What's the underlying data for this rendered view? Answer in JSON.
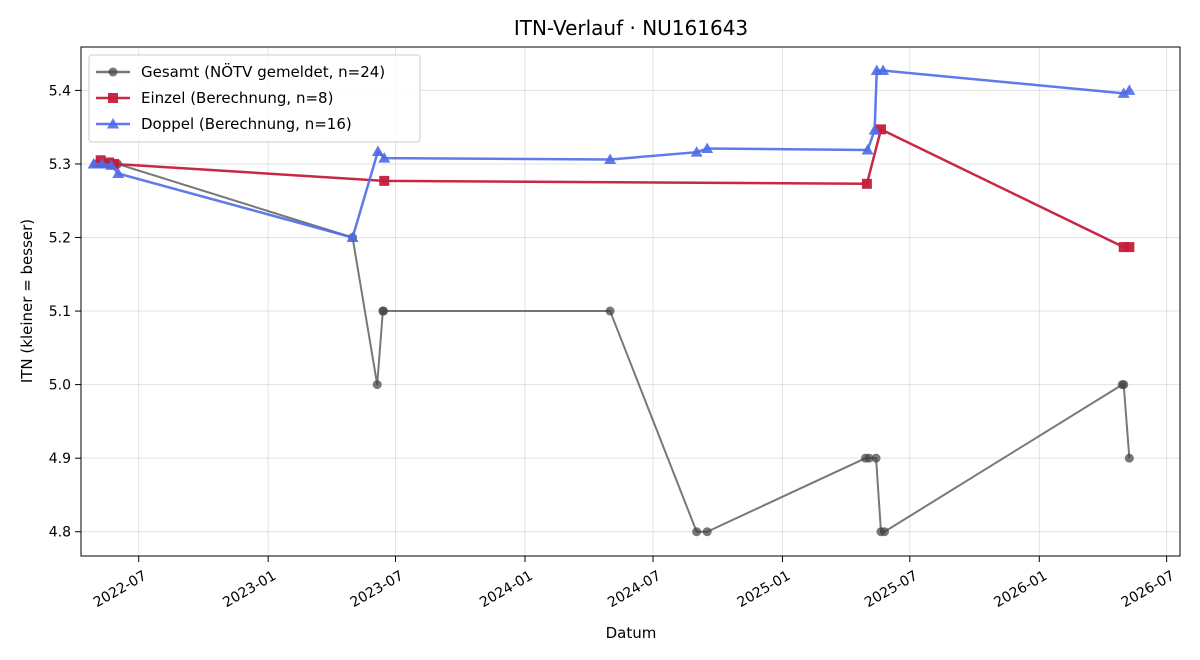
{
  "chart_data": {
    "type": "line",
    "title": "ITN-Verlauf · NU161643",
    "xlabel": "Datum",
    "ylabel": "ITN  (kleiner = besser)",
    "xlim": [
      "2022-04-10",
      "2026-07-20"
    ],
    "ylim": [
      4.767,
      5.459
    ],
    "x_ticks": [
      "2022-07-01",
      "2023-01-01",
      "2023-07-01",
      "2024-01-01",
      "2024-07-01",
      "2025-01-01",
      "2025-07-01",
      "2026-01-01",
      "2026-07-01"
    ],
    "x_tick_labels": [
      "2022-07",
      "2023-01",
      "2023-07",
      "2024-01",
      "2024-07",
      "2025-01",
      "2025-07",
      "2026-01",
      "2026-07"
    ],
    "y_ticks": [
      4.8,
      4.9,
      5.0,
      5.1,
      5.2,
      5.3,
      5.4
    ],
    "y_tick_labels": [
      "4.8",
      "4.9",
      "5.0",
      "5.1",
      "5.2",
      "5.3",
      "5.4"
    ],
    "grid": true,
    "legend_position": "top-left",
    "series": [
      {
        "name": "Gesamt (NÖTV gemeldet, n=24)",
        "color": "#444444",
        "marker": "circle",
        "points": [
          [
            "2022-05-01",
            5.3
          ],
          [
            "2022-05-07",
            5.3
          ],
          [
            "2022-05-12",
            5.3
          ],
          [
            "2022-05-18",
            5.3
          ],
          [
            "2022-05-25",
            5.3
          ],
          [
            "2022-06-01",
            5.3
          ],
          [
            "2023-05-01",
            5.2
          ],
          [
            "2023-06-05",
            5.0
          ],
          [
            "2023-06-13",
            5.1
          ],
          [
            "2023-06-14",
            5.1
          ],
          [
            "2024-05-01",
            5.1
          ],
          [
            "2024-09-01",
            4.8
          ],
          [
            "2024-09-16",
            4.8
          ],
          [
            "2025-04-29",
            4.9
          ],
          [
            "2025-05-04",
            4.9
          ],
          [
            "2025-05-14",
            4.9
          ],
          [
            "2025-05-21",
            4.8
          ],
          [
            "2025-05-26",
            4.8
          ],
          [
            "2026-04-29",
            5.0
          ],
          [
            "2026-05-01",
            5.0
          ],
          [
            "2026-05-09",
            4.9
          ]
        ]
      },
      {
        "name": "Einzel (Berechnung, n=8)",
        "color": "#c41e3a",
        "marker": "square",
        "points": [
          [
            "2022-05-08",
            5.305
          ],
          [
            "2022-05-20",
            5.302
          ],
          [
            "2022-05-27",
            5.3
          ],
          [
            "2023-06-15",
            5.277
          ],
          [
            "2025-05-01",
            5.273
          ],
          [
            "2025-05-21",
            5.347
          ],
          [
            "2026-05-01",
            5.187
          ],
          [
            "2026-05-09",
            5.187
          ]
        ]
      },
      {
        "name": "Doppel (Berechnung, n=16)",
        "color": "#4f6ce8",
        "marker": "triangle",
        "points": [
          [
            "2022-04-28",
            5.3
          ],
          [
            "2022-05-10",
            5.3
          ],
          [
            "2022-05-23",
            5.298
          ],
          [
            "2022-06-02",
            5.287
          ],
          [
            "2023-05-01",
            5.2
          ],
          [
            "2023-06-06",
            5.317
          ],
          [
            "2023-06-15",
            5.308
          ],
          [
            "2024-05-01",
            5.306
          ],
          [
            "2024-09-01",
            5.316
          ],
          [
            "2024-09-16",
            5.321
          ],
          [
            "2025-05-02",
            5.319
          ],
          [
            "2025-05-12",
            5.346
          ],
          [
            "2025-05-15",
            5.427
          ],
          [
            "2025-05-24",
            5.427
          ],
          [
            "2026-05-01",
            5.396
          ],
          [
            "2026-05-09",
            5.4
          ]
        ]
      }
    ]
  }
}
